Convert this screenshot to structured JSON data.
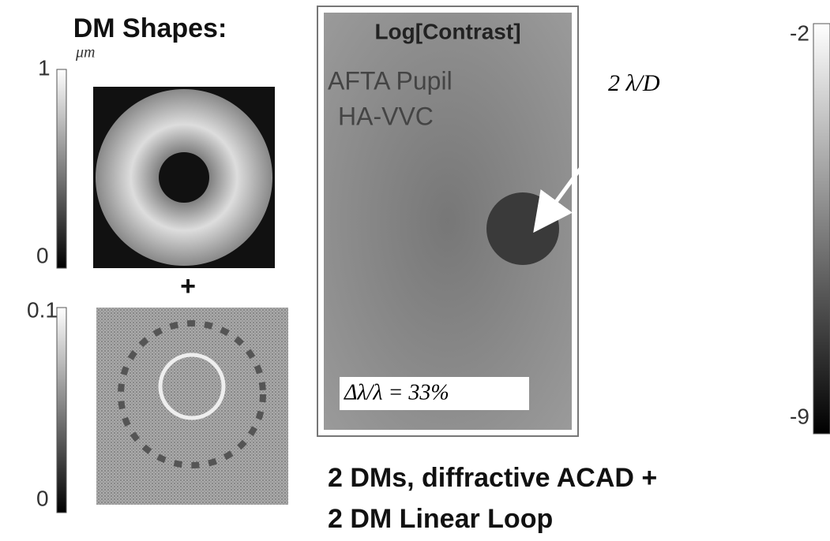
{
  "left_panel": {
    "title": "DM Shapes:",
    "unit": "μm",
    "bar1_top": "1",
    "bar1_bottom": "0",
    "plus": "+",
    "bar2_top": "0.1",
    "bar2_bottom": "0"
  },
  "main_panel": {
    "title": "Log[Contrast]",
    "pupil": "AFTA Pupil",
    "coronagraph": "HA-VVC",
    "arrow_label": "2 λ/D",
    "bandwidth": "Δλ/λ = 33%",
    "colorbar_top": "-2",
    "colorbar_bottom": "-9"
  },
  "caption": {
    "line1": "2 DMs,  diffractive ACAD +",
    "line2": "2 DM Linear Loop"
  }
}
